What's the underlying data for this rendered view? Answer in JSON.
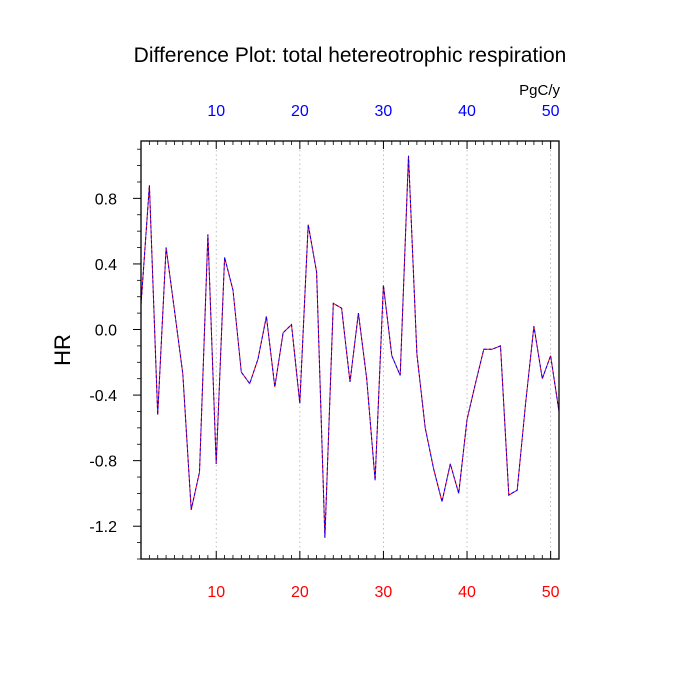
{
  "chart_data": {
    "type": "line",
    "title": "Difference Plot: total hetereotrophic respiration",
    "ylabel": "HR",
    "units_label": "PgC/y",
    "xlim": [
      1,
      51
    ],
    "ylim": [
      -1.4,
      1.15
    ],
    "x_ticks": [
      10,
      20,
      30,
      40,
      50
    ],
    "y_ticks": [
      -1.2,
      -0.8,
      -0.4,
      0.0,
      0.4,
      0.8
    ],
    "y_tick_labels": [
      "-1.2",
      "-0.8",
      "-0.4",
      "0.0",
      "0.4",
      "0.8"
    ],
    "grid": "vertical dotted at x ticks",
    "top_axis_color": "#0000ff",
    "bottom_axis_color": "#ff0000",
    "series": [
      {
        "color_solid": "#ff0000",
        "color_dashed": "#0000ff",
        "x": [
          1,
          2,
          3,
          4,
          5,
          6,
          7,
          8,
          9,
          10,
          11,
          12,
          13,
          14,
          15,
          16,
          17,
          18,
          19,
          20,
          21,
          22,
          23,
          24,
          25,
          26,
          27,
          28,
          29,
          30,
          31,
          32,
          33,
          34,
          35,
          36,
          37,
          38,
          39,
          40,
          41,
          42,
          43,
          44,
          45,
          46,
          47,
          48,
          49,
          50,
          51
        ],
        "values": [
          0.15,
          0.88,
          -0.52,
          0.5,
          0.12,
          -0.27,
          -1.1,
          -0.87,
          0.58,
          -0.82,
          0.44,
          0.24,
          -0.26,
          -0.33,
          -0.18,
          0.08,
          -0.35,
          -0.02,
          0.03,
          -0.45,
          0.64,
          0.35,
          -1.27,
          0.16,
          0.13,
          -0.32,
          0.1,
          -0.3,
          -0.92,
          0.27,
          -0.16,
          -0.28,
          1.06,
          -0.15,
          -0.6,
          -0.85,
          -1.05,
          -0.82,
          -1.0,
          -0.55,
          -0.33,
          -0.12,
          -0.12,
          -0.1,
          -1.01,
          -0.98,
          -0.45,
          0.02,
          -0.3,
          -0.16,
          -0.5
        ]
      }
    ]
  }
}
